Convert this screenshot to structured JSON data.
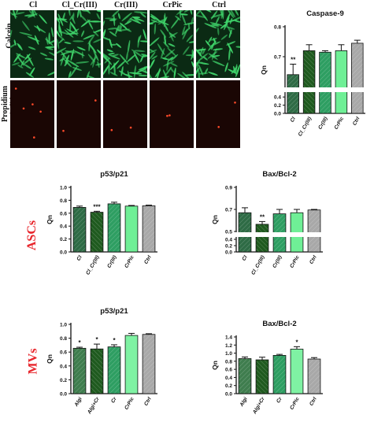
{
  "microscopy": {
    "columns": [
      "Cl",
      "Cl_Cr(III)",
      "Cr(III)",
      "CrPic",
      "Ctrl"
    ],
    "rows": [
      "Calcein",
      "Propidium iodide"
    ],
    "colors": {
      "calcein_bg": "#0b2a14",
      "calcein_cell": "#3fd46a",
      "pi_bg": "#1a0604",
      "pi_dot": "#ff4a2a"
    }
  },
  "groups": {
    "top": "ASCs",
    "bottom": "MVs"
  },
  "chart_data": [
    {
      "id": "caspase9",
      "type": "bar",
      "title": "Caspase-9",
      "ylabel": "Qn",
      "categories": [
        "Cl",
        "Cl_Cr(III)",
        "Cr(III)",
        "CrPic",
        "Ctrl"
      ],
      "values": [
        0.64,
        0.72,
        0.715,
        0.72,
        0.745
      ],
      "errors": [
        0.035,
        0.02,
        0.005,
        0.02,
        0.01
      ],
      "significance": [
        "**",
        "",
        "",
        "",
        ""
      ],
      "broken_axis": {
        "lower": [
          0.0,
          0.5
        ],
        "upper": [
          0.6,
          0.8
        ]
      },
      "yticks_lower": [
        "0.0",
        "0.2",
        "0.4"
      ],
      "yticks_upper": [
        "0.7",
        "0.8"
      ],
      "bar_colors": [
        "#2e6b45",
        "#1f5a1f",
        "#2e9e62",
        "#6fef96",
        "#a8a8a8"
      ]
    },
    {
      "id": "asc_p53",
      "type": "bar",
      "title": "p53/p21",
      "ylabel": "Qn",
      "categories": [
        "Cl",
        "Cl_Cr(III)",
        "Cr(III)",
        "CrPic",
        "Ctrl"
      ],
      "values": [
        0.69,
        0.615,
        0.745,
        0.71,
        0.715
      ],
      "errors": [
        0.02,
        0.015,
        0.025,
        0.01,
        0.01
      ],
      "significance": [
        "",
        "***",
        "",
        "",
        ""
      ],
      "ylim": [
        0.0,
        1.0
      ],
      "yticks": [
        "0.0",
        "0.2",
        "0.4",
        "0.6",
        "0.8",
        "1.0"
      ],
      "bar_colors": [
        "#2e6b45",
        "#1f5a1f",
        "#2e9e62",
        "#6fef96",
        "#a8a8a8"
      ]
    },
    {
      "id": "asc_bax",
      "type": "bar",
      "title": "Bax/Bcl-2",
      "ylabel": "Qn",
      "categories": [
        "Cl",
        "Cl_Cr(III)",
        "Cr(III)",
        "CrPic",
        "Ctrl"
      ],
      "values": [
        0.67,
        0.565,
        0.66,
        0.67,
        0.695
      ],
      "errors": [
        0.045,
        0.025,
        0.04,
        0.03,
        0.005
      ],
      "significance": [
        "",
        "**",
        "",
        "",
        ""
      ],
      "broken_axis": {
        "lower": [
          0.0,
          0.45
        ],
        "upper": [
          0.5,
          0.9
        ]
      },
      "yticks_lower": [
        "0.0",
        "0.2",
        "0.4"
      ],
      "yticks_upper": [
        "0.5",
        "0.7",
        "0.9"
      ],
      "bar_colors": [
        "#2e6b45",
        "#1f5a1f",
        "#2e9e62",
        "#6fef96",
        "#a8a8a8"
      ]
    },
    {
      "id": "mv_p53",
      "type": "bar",
      "title": "p53/p21",
      "ylabel": "Qn",
      "categories": [
        "Algi",
        "Algi+Cr",
        "Cr",
        "CrPic",
        "Ctrl"
      ],
      "values": [
        0.655,
        0.645,
        0.675,
        0.84,
        0.855
      ],
      "errors": [
        0.015,
        0.07,
        0.03,
        0.03,
        0.01
      ],
      "significance": [
        "*",
        "*",
        "*",
        "",
        ""
      ],
      "ylim": [
        0.0,
        1.0
      ],
      "yticks": [
        "0.0",
        "0.2",
        "0.4",
        "0.6",
        "0.8",
        "1.0"
      ],
      "bar_colors": [
        "#3f7d4e",
        "#1f5a1f",
        "#2e9e62",
        "#7ff2a3",
        "#a8a8a8"
      ]
    },
    {
      "id": "mv_bax",
      "type": "bar",
      "title": "Bax/Bcl-2",
      "ylabel": "Qn",
      "categories": [
        "Algi",
        "Algi+Cr",
        "Cr",
        "CrPic",
        "Ctrl"
      ],
      "values": [
        0.865,
        0.835,
        0.945,
        1.1,
        0.855
      ],
      "errors": [
        0.04,
        0.065,
        0.025,
        0.06,
        0.035
      ],
      "significance": [
        "",
        "",
        "",
        "*",
        ""
      ],
      "ylim": [
        0.0,
        1.4
      ],
      "yticks": [
        "0.0",
        "0.2",
        "0.4",
        "0.6",
        "0.8",
        "1.0",
        "1.2",
        "1.4"
      ],
      "bar_colors": [
        "#3f7d4e",
        "#1f5a1f",
        "#2e9e62",
        "#7ff2a3",
        "#a8a8a8"
      ]
    }
  ]
}
